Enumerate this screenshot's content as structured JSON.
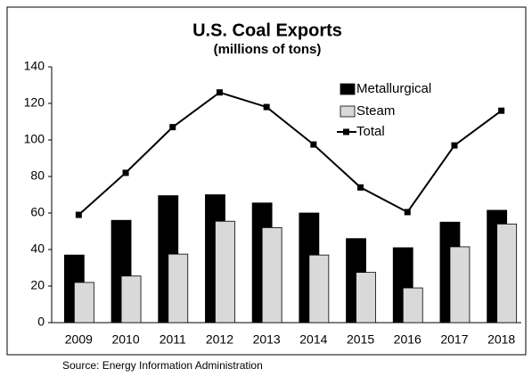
{
  "chart_data": {
    "type": "bar",
    "title": "U.S. Coal Exports",
    "subtitle": "(millions of tons)",
    "source": "Source: Energy Information Administration",
    "categories": [
      "2009",
      "2010",
      "2011",
      "2012",
      "2013",
      "2014",
      "2015",
      "2016",
      "2017",
      "2018"
    ],
    "series": [
      {
        "name": "Metallurgical",
        "color": "#000000",
        "type": "bar",
        "values": [
          37,
          56,
          69.5,
          70,
          65.5,
          60,
          46,
          41,
          55,
          61.5
        ]
      },
      {
        "name": "Steam",
        "color": "#d9d9d9",
        "type": "bar",
        "values": [
          22,
          25.5,
          37.5,
          55.5,
          52,
          37,
          27.5,
          19,
          41.5,
          54
        ]
      },
      {
        "name": "Total",
        "color": "#000000",
        "type": "line",
        "values": [
          59,
          82,
          107,
          126,
          118,
          97.5,
          74,
          60.5,
          97,
          116
        ]
      }
    ],
    "ylim": [
      0,
      140
    ],
    "yticks": [
      0,
      20,
      40,
      60,
      80,
      100,
      120,
      140
    ],
    "grid": false,
    "legend": "top-right"
  }
}
